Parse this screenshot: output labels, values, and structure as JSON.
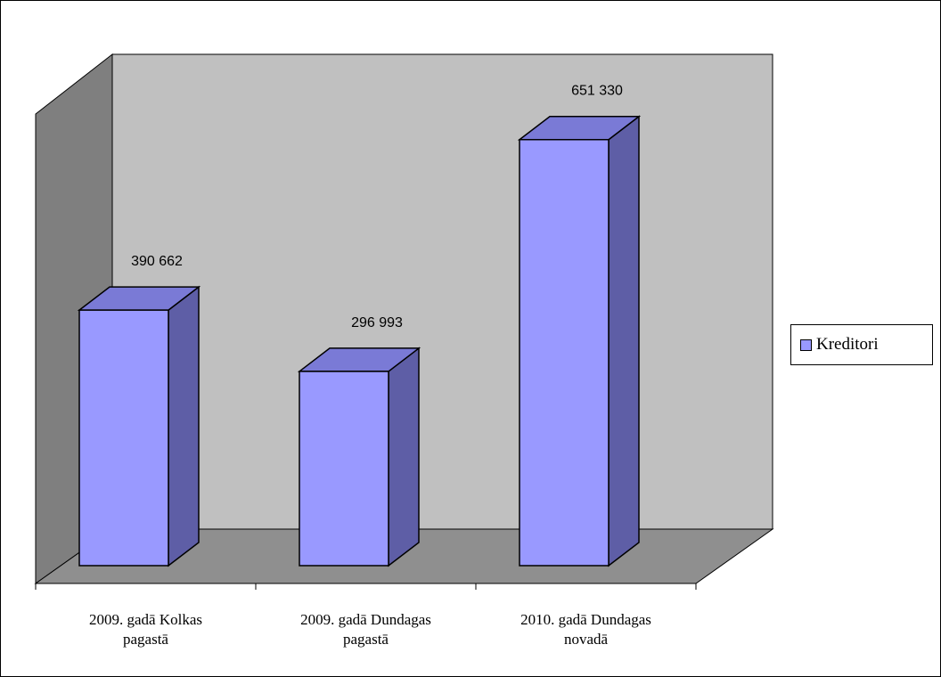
{
  "chart_data": {
    "type": "bar",
    "categories": [
      "2009. gadā Kolkas pagastā",
      "2009. gadā Dundagas pagastā",
      "2010. gadā Dundagas novadā"
    ],
    "category_lines": [
      [
        "2009. gadā Kolkas",
        "pagastā"
      ],
      [
        "2009. gadā Dundagas",
        "pagastā"
      ],
      [
        "2010. gadā Dundagas",
        "novadā"
      ]
    ],
    "series": [
      {
        "name": "Kreditori",
        "values": [
          390662,
          296993,
          651330
        ]
      }
    ],
    "data_labels": [
      "390 662",
      "296 993",
      "651 330"
    ],
    "ylim": [
      0,
      700000
    ],
    "grid": false,
    "legend_position": "right",
    "three_d": true
  },
  "colors": {
    "bar_front": "#9999ff",
    "bar_top": "#7a7ad6",
    "bar_side": "#5e5ea6",
    "back_wall": "#c0c0c0",
    "side_wall": "#7f7f7f",
    "floor": "#8f8f8f"
  },
  "legend": {
    "label": "Kreditori"
  }
}
